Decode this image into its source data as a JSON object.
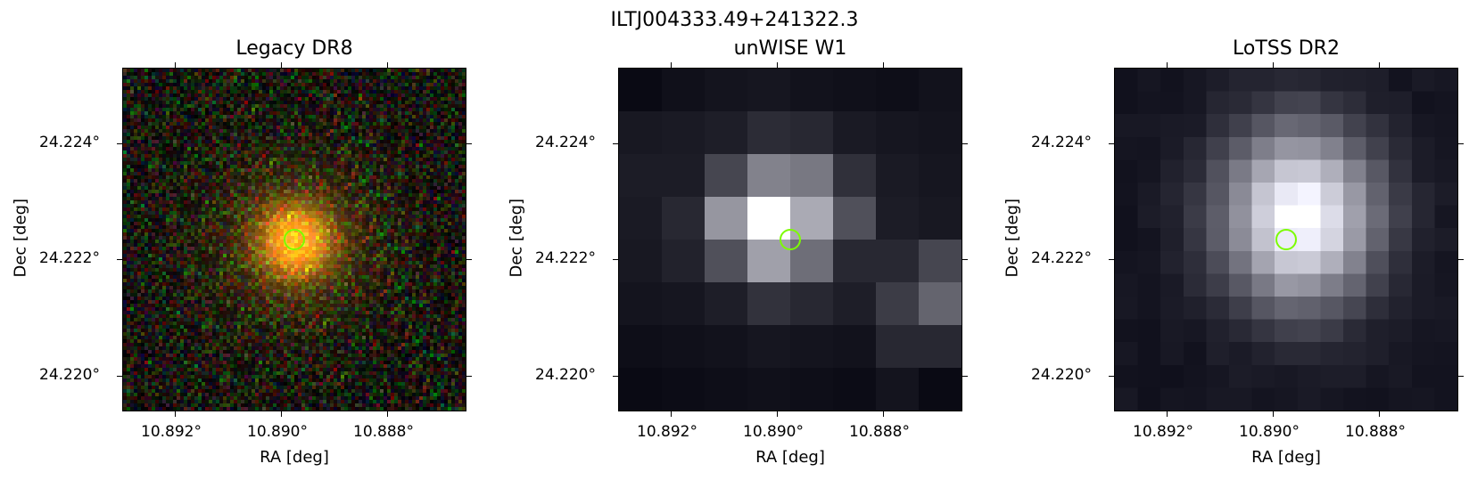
{
  "figure": {
    "title": "ILTJ004333.49+241322.3"
  },
  "panels": [
    {
      "title": "Legacy DR8",
      "xlabel": "RA [deg]",
      "ylabel": "Dec [deg]",
      "xticks": [
        "10.892°",
        "10.890°",
        "10.888°"
      ],
      "yticks": [
        "24.224°",
        "24.222°",
        "24.220°"
      ],
      "style": "rgb-noise"
    },
    {
      "title": "unWISE W1",
      "xlabel": "RA [deg]",
      "ylabel": "Dec [deg]",
      "xticks": [
        "10.892°",
        "10.890°",
        "10.888°"
      ],
      "yticks": [
        "24.224°",
        "24.222°",
        "24.220°"
      ],
      "style": "coarse-grey"
    },
    {
      "title": "LoTSS DR2",
      "xlabel": "RA [deg]",
      "ylabel": "Dec [deg]",
      "xticks": [
        "10.892°",
        "10.890°",
        "10.888°"
      ],
      "yticks": [
        "24.224°",
        "24.222°",
        "24.220°"
      ],
      "style": "fine-grey"
    }
  ],
  "colors": {
    "marker": "#7CFC00"
  }
}
